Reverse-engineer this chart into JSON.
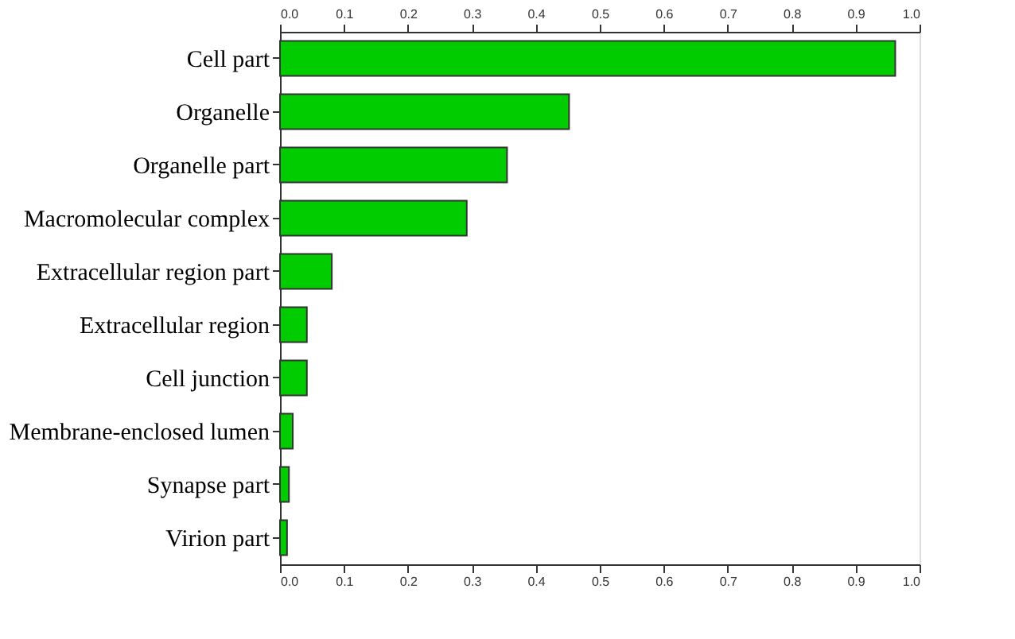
{
  "chart_data": {
    "type": "bar",
    "orientation": "horizontal",
    "categories": [
      "Cell part",
      "Organelle",
      "Organelle part",
      "Macromolecular complex",
      "Extracellular region part",
      "Extracellular region",
      "Cell junction",
      "Membrane-enclosed lumen",
      "Synapse part",
      "Virion part"
    ],
    "values": [
      0.962,
      0.452,
      0.355,
      0.292,
      0.081,
      0.042,
      0.042,
      0.02,
      0.014,
      0.011
    ],
    "color": "#00cc00",
    "xlim": [
      0,
      1
    ],
    "xticks": [
      {
        "value": 0,
        "label": "0.0"
      },
      0.1,
      0.2,
      0.3,
      0.4,
      0.5,
      0.6,
      0.7,
      0.8,
      0.9,
      {
        "value": 1,
        "label": "1.0"
      }
    ],
    "x2lim": [
      0,
      1
    ],
    "x2ticks": [
      {
        "value": 0,
        "label": "0.0"
      },
      0.1,
      0.2,
      0.3,
      0.4,
      0.5,
      0.6,
      0.7,
      0.8,
      0.9,
      {
        "value": 1,
        "label": "1.0"
      }
    ],
    "grid": false
  }
}
